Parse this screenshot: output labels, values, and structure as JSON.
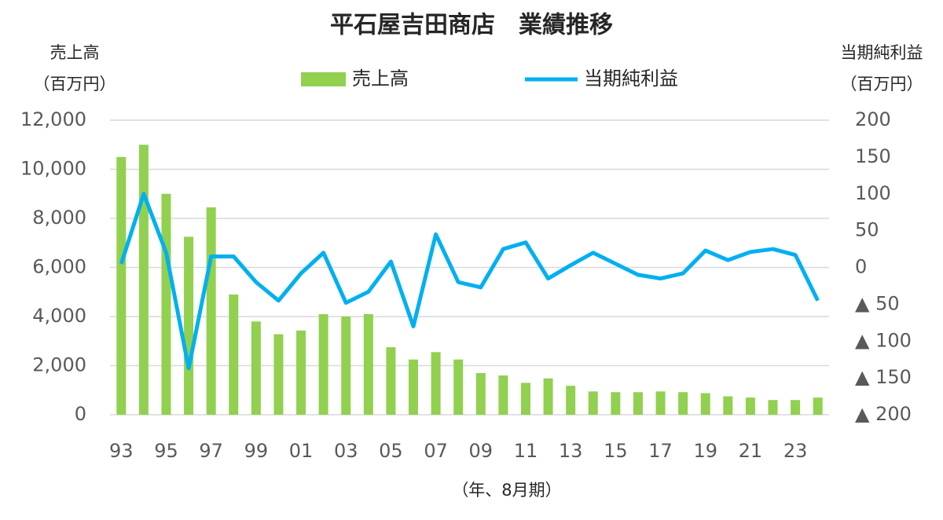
{
  "chart_data": {
    "type": "bar_line",
    "title": "平石屋吉田商店　業績推移",
    "y_label": [
      "売上高",
      "（百万円）"
    ],
    "y2_label": [
      "当期純利益",
      "（百万円）"
    ],
    "x_label": "（年、8月期）",
    "categories": [
      "93",
      null,
      "95",
      null,
      "97",
      null,
      "99",
      null,
      "01",
      null,
      "03",
      null,
      "05",
      null,
      "07",
      null,
      "09",
      null,
      "11",
      null,
      "13",
      null,
      "15",
      null,
      "17",
      null,
      "19",
      null,
      "21",
      null,
      "23",
      null
    ],
    "series": [
      {
        "name": "売上高",
        "type": "bar",
        "color": "#92d050",
        "values": [
          10500,
          11000,
          9000,
          7250,
          8450,
          4900,
          3800,
          3280,
          3430,
          4100,
          4000,
          4100,
          2750,
          2250,
          2550,
          2250,
          1700,
          1600,
          1300,
          1480,
          1180,
          950,
          920,
          920,
          950,
          920,
          880,
          750,
          700,
          600,
          600,
          700
        ]
      },
      {
        "name": "当期純利益",
        "type": "line",
        "axis": "y2",
        "color": "#00b0f0",
        "values": [
          5,
          100,
          20,
          -137,
          15,
          15,
          -20,
          -45,
          -8,
          20,
          -48,
          -33,
          8,
          -80,
          45,
          -20,
          -27,
          25,
          34,
          -15,
          3,
          20,
          5,
          -10,
          -15,
          -8,
          23,
          10,
          21,
          25,
          17,
          -45
        ]
      }
    ],
    "ylim": [
      0,
      12000
    ],
    "yticks": [
      0,
      {
        "value": 2000,
        "label": "2,000"
      },
      {
        "value": 4000,
        "label": "4,000"
      },
      {
        "value": 6000,
        "label": "6,000"
      },
      {
        "value": 8000,
        "label": "8,000"
      },
      {
        "value": 10000,
        "label": "10,000"
      },
      {
        "value": 12000,
        "label": "12,000"
      }
    ],
    "y2lim": [
      -200,
      200
    ],
    "y2ticks": [
      {
        "value": -200,
        "label": "▲ 200"
      },
      {
        "value": -150,
        "label": "▲ 150"
      },
      {
        "value": -100,
        "label": "▲ 100"
      },
      {
        "value": -50,
        "label": "▲ 50"
      },
      0,
      50,
      100,
      150,
      200
    ],
    "grid": true
  }
}
